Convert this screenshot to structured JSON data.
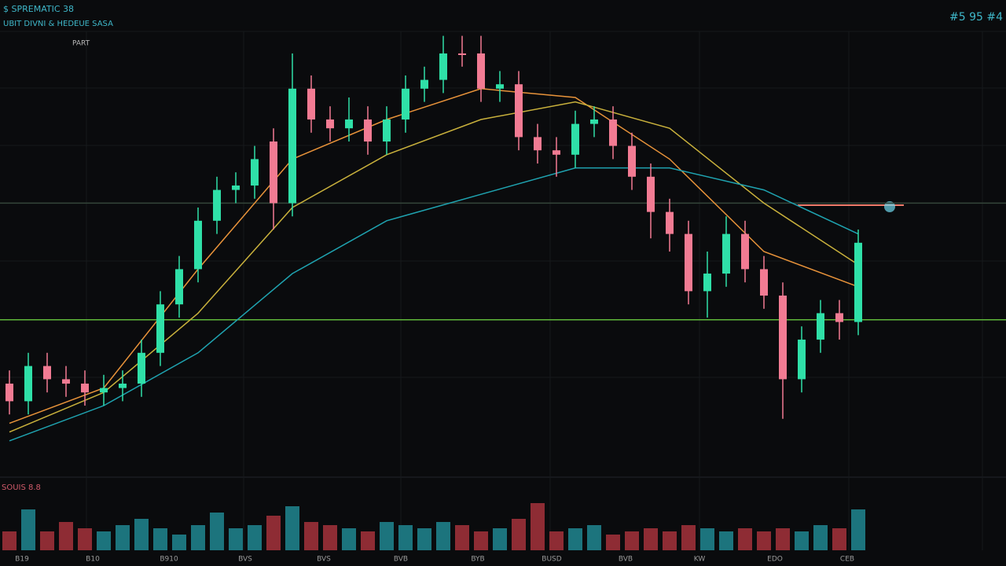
{
  "chart_data": {
    "type": "candlestick",
    "title": "$ SPREMATIC 38",
    "subtitle": "UBIT DIVNI & HEDEUE SASA",
    "label": "PART",
    "corner_label": "#5 95 #4",
    "volume_label": "SOUIS 8.8",
    "ylim": [
      0,
      100
    ],
    "vlim": [
      0,
      100
    ],
    "grid": true,
    "up_color": "#2fe0a8",
    "down_color": "#f27b93",
    "volume_up_color": "#1e7f8a",
    "volume_down_color": "#9c3038",
    "open": [
      20,
      16,
      24,
      21,
      20,
      18,
      19,
      20,
      27,
      38,
      46,
      57,
      64,
      65,
      75,
      61,
      87,
      80,
      78,
      80,
      75,
      80,
      87,
      89,
      95,
      95,
      87,
      88,
      76,
      73,
      72,
      79,
      80,
      74,
      67,
      59,
      54,
      41,
      45,
      54,
      46,
      40,
      21,
      30,
      36,
      34
    ],
    "close": [
      16,
      24,
      21,
      20,
      18,
      19,
      20,
      27,
      38,
      46,
      57,
      64,
      65,
      71,
      61,
      87,
      80,
      78,
      80,
      75,
      80,
      87,
      89,
      95,
      95,
      87,
      88,
      76,
      73,
      72,
      79,
      80,
      74,
      67,
      59,
      54,
      41,
      45,
      54,
      46,
      40,
      21,
      30,
      36,
      34,
      52
    ],
    "high": [
      23,
      27,
      27,
      24,
      23,
      22,
      23,
      30,
      41,
      49,
      60,
      67,
      68,
      74,
      78,
      95,
      90,
      83,
      85,
      83,
      83,
      90,
      92,
      99,
      99,
      99,
      91,
      91,
      79,
      76,
      82,
      83,
      83,
      77,
      70,
      62,
      57,
      50,
      58,
      57,
      49,
      43,
      33,
      39,
      39,
      55
    ],
    "low": [
      13,
      13,
      18,
      17,
      15,
      15,
      16,
      17,
      24,
      35,
      43,
      54,
      61,
      62,
      55,
      58,
      77,
      75,
      75,
      72,
      72,
      77,
      84,
      86,
      92,
      84,
      84,
      73,
      70,
      67,
      69,
      76,
      71,
      64,
      53,
      50,
      38,
      35,
      42,
      43,
      37,
      12,
      18,
      27,
      30,
      31
    ],
    "volume": [
      30,
      65,
      30,
      45,
      35,
      30,
      40,
      50,
      35,
      25,
      40,
      60,
      35,
      40,
      55,
      70,
      45,
      40,
      35,
      30,
      45,
      40,
      35,
      45,
      40,
      30,
      35,
      50,
      75,
      30,
      35,
      40,
      25,
      30,
      35,
      30,
      40,
      35,
      30,
      35,
      30,
      35,
      30,
      40,
      35,
      65
    ],
    "overlays": [
      {
        "color": "#e8933a",
        "x": [
          0,
          5,
          10,
          15,
          20,
          25,
          30,
          35,
          40,
          45
        ],
        "values": [
          11,
          19,
          46,
          71,
          80,
          87,
          85,
          71,
          50,
          42
        ]
      },
      {
        "color": "#c9b13c",
        "x": [
          0,
          5,
          10,
          15,
          20,
          25,
          30,
          35,
          40,
          45
        ],
        "values": [
          9,
          18,
          36,
          60,
          72,
          80,
          84,
          78,
          61,
          47
        ]
      },
      {
        "color": "#1fa3b0",
        "x": [
          0,
          5,
          10,
          15,
          20,
          25,
          30,
          35,
          40,
          45
        ],
        "values": [
          7,
          15,
          27,
          45,
          57,
          63,
          69,
          69,
          64,
          54
        ]
      }
    ],
    "hlines": [
      {
        "value": 34.5,
        "color": "#5fb83a"
      },
      {
        "value": 61,
        "color": "#34463a"
      }
    ],
    "xtick_labels": [
      "B19",
      "B10",
      "B910",
      "BVS",
      "BVS",
      "BVB",
      "BYB",
      "BUSD",
      "BVB",
      "KW",
      "EDO",
      "CEB"
    ]
  }
}
